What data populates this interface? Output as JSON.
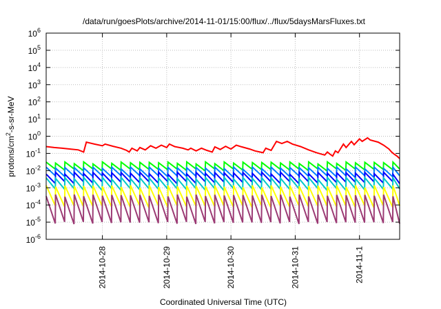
{
  "chart_data": {
    "type": "line",
    "title": "/data/run/goesPlots/archive/2014-11-01/15:00/flux/../flux/5daysMarsFluxes.txt",
    "xlabel": "Coordinated Universal Time (UTC)",
    "ylabel_base": "protons/cm",
    "ylabel_sup": "2",
    "ylabel_rest": "-s-sr-MeV",
    "y_scale": "log",
    "ylim_exp": [
      -6,
      6
    ],
    "xlim": [
      "2014-10-27 03:00",
      "2014-11-01 15:00"
    ],
    "grid": true,
    "x_ticks": [
      {
        "label": "2014-10-28",
        "x": "2014-10-28 00:00"
      },
      {
        "label": "2014-10-29",
        "x": "2014-10-29 00:00"
      },
      {
        "label": "2014-10-30",
        "x": "2014-10-30 00:00"
      },
      {
        "label": "2014-10-31",
        "x": "2014-10-31 00:00"
      },
      {
        "label": "2014-11-1",
        "x": "2014-11-01 00:00"
      }
    ],
    "y_ticks": [
      {
        "base": "10",
        "exp": "-6"
      },
      {
        "base": "10",
        "exp": "-5"
      },
      {
        "base": "10",
        "exp": "-4"
      },
      {
        "base": "10",
        "exp": "-3"
      },
      {
        "base": "10",
        "exp": "-2"
      },
      {
        "base": "10",
        "exp": "-1"
      },
      {
        "base": "10",
        "exp": "0"
      },
      {
        "base": "10",
        "exp": "1"
      },
      {
        "base": "10",
        "exp": "2"
      },
      {
        "base": "10",
        "exp": "3"
      },
      {
        "base": "10",
        "exp": "4"
      },
      {
        "base": "10",
        "exp": "5"
      },
      {
        "base": "10",
        "exp": "6"
      }
    ],
    "series": [
      {
        "color": "#ff0000",
        "points": [
          [
            "2014-10-27 03:00",
            0.25
          ],
          [
            "2014-10-27 06:00",
            0.22
          ],
          [
            "2014-10-27 09:00",
            0.2
          ],
          [
            "2014-10-27 12:00",
            0.18
          ],
          [
            "2014-10-27 15:00",
            0.16
          ],
          [
            "2014-10-27 17:00",
            0.12
          ],
          [
            "2014-10-27 18:00",
            0.45
          ],
          [
            "2014-10-27 21:00",
            0.35
          ],
          [
            "2014-10-28 00:00",
            0.28
          ],
          [
            "2014-10-28 01:00",
            0.35
          ],
          [
            "2014-10-28 04:00",
            0.26
          ],
          [
            "2014-10-28 07:00",
            0.2
          ],
          [
            "2014-10-28 09:00",
            0.15
          ],
          [
            "2014-10-28 10:00",
            0.12
          ],
          [
            "2014-10-28 11:00",
            0.2
          ],
          [
            "2014-10-28 13:00",
            0.14
          ],
          [
            "2014-10-28 14:00",
            0.22
          ],
          [
            "2014-10-28 16:00",
            0.16
          ],
          [
            "2014-10-28 18:00",
            0.28
          ],
          [
            "2014-10-28 20:00",
            0.2
          ],
          [
            "2014-10-28 22:00",
            0.3
          ],
          [
            "2014-10-29 00:00",
            0.22
          ],
          [
            "2014-10-29 01:00",
            0.35
          ],
          [
            "2014-10-29 03:00",
            0.25
          ],
          [
            "2014-10-29 06:00",
            0.2
          ],
          [
            "2014-10-29 08:00",
            0.16
          ],
          [
            "2014-10-29 09:00",
            0.2
          ],
          [
            "2014-10-29 11:00",
            0.14
          ],
          [
            "2014-10-29 13:00",
            0.2
          ],
          [
            "2014-10-29 15:00",
            0.15
          ],
          [
            "2014-10-29 17:00",
            0.12
          ],
          [
            "2014-10-29 18:00",
            0.24
          ],
          [
            "2014-10-29 20:00",
            0.17
          ],
          [
            "2014-10-29 22:00",
            0.26
          ],
          [
            "2014-10-30 00:00",
            0.18
          ],
          [
            "2014-10-30 02:00",
            0.3
          ],
          [
            "2014-10-30 04:00",
            0.24
          ],
          [
            "2014-10-30 07:00",
            0.18
          ],
          [
            "2014-10-30 09:00",
            0.14
          ],
          [
            "2014-10-30 12:00",
            0.11
          ],
          [
            "2014-10-30 13:00",
            0.2
          ],
          [
            "2014-10-30 15:00",
            0.15
          ],
          [
            "2014-10-30 17:00",
            0.5
          ],
          [
            "2014-10-30 19:00",
            0.38
          ],
          [
            "2014-10-30 21:00",
            0.5
          ],
          [
            "2014-10-30 23:00",
            0.35
          ],
          [
            "2014-10-31 02:00",
            0.25
          ],
          [
            "2014-10-31 05:00",
            0.16
          ],
          [
            "2014-10-31 08:00",
            0.11
          ],
          [
            "2014-10-31 11:00",
            0.08
          ],
          [
            "2014-10-31 12:00",
            0.12
          ],
          [
            "2014-10-31 13:00",
            0.09
          ],
          [
            "2014-10-31 14:00",
            0.07
          ],
          [
            "2014-10-31 15:00",
            0.14
          ],
          [
            "2014-10-31 16:00",
            0.11
          ],
          [
            "2014-10-31 18:00",
            0.35
          ],
          [
            "2014-10-31 19:00",
            0.22
          ],
          [
            "2014-10-31 21:00",
            0.5
          ],
          [
            "2014-10-31 22:00",
            0.32
          ],
          [
            "2014-11-01 00:00",
            0.7
          ],
          [
            "2014-11-01 01:00",
            0.5
          ],
          [
            "2014-11-01 03:00",
            0.8
          ],
          [
            "2014-11-01 04:00",
            0.6
          ],
          [
            "2014-11-01 07:00",
            0.45
          ],
          [
            "2014-11-01 09:00",
            0.3
          ],
          [
            "2014-11-01 11:00",
            0.18
          ],
          [
            "2014-11-01 12:00",
            0.12
          ],
          [
            "2014-11-01 13:00",
            0.09
          ],
          [
            "2014-11-01 14:00",
            0.07
          ],
          [
            "2014-11-01 15:00",
            0.05
          ]
        ]
      },
      {
        "color": "#00ff00",
        "base": 0.028,
        "valley": 0.011,
        "period_h": 3.5
      },
      {
        "color": "#007fff",
        "base": 0.014,
        "valley": 0.0045,
        "period_h": 3.5
      },
      {
        "color": "#0000ff",
        "base": 0.007,
        "valley": 0.002,
        "period_h": 3.5
      },
      {
        "color": "#00c8c8",
        "base": 0.0035,
        "valley": 0.0008,
        "period_h": 3.5
      },
      {
        "color": "#ffff00",
        "base": 0.0012,
        "valley": 8e-05,
        "period_h": 3.5
      },
      {
        "color": "#9b3a74",
        "base": 0.00035,
        "valley": 9e-06,
        "period_h": 3.5
      }
    ]
  }
}
